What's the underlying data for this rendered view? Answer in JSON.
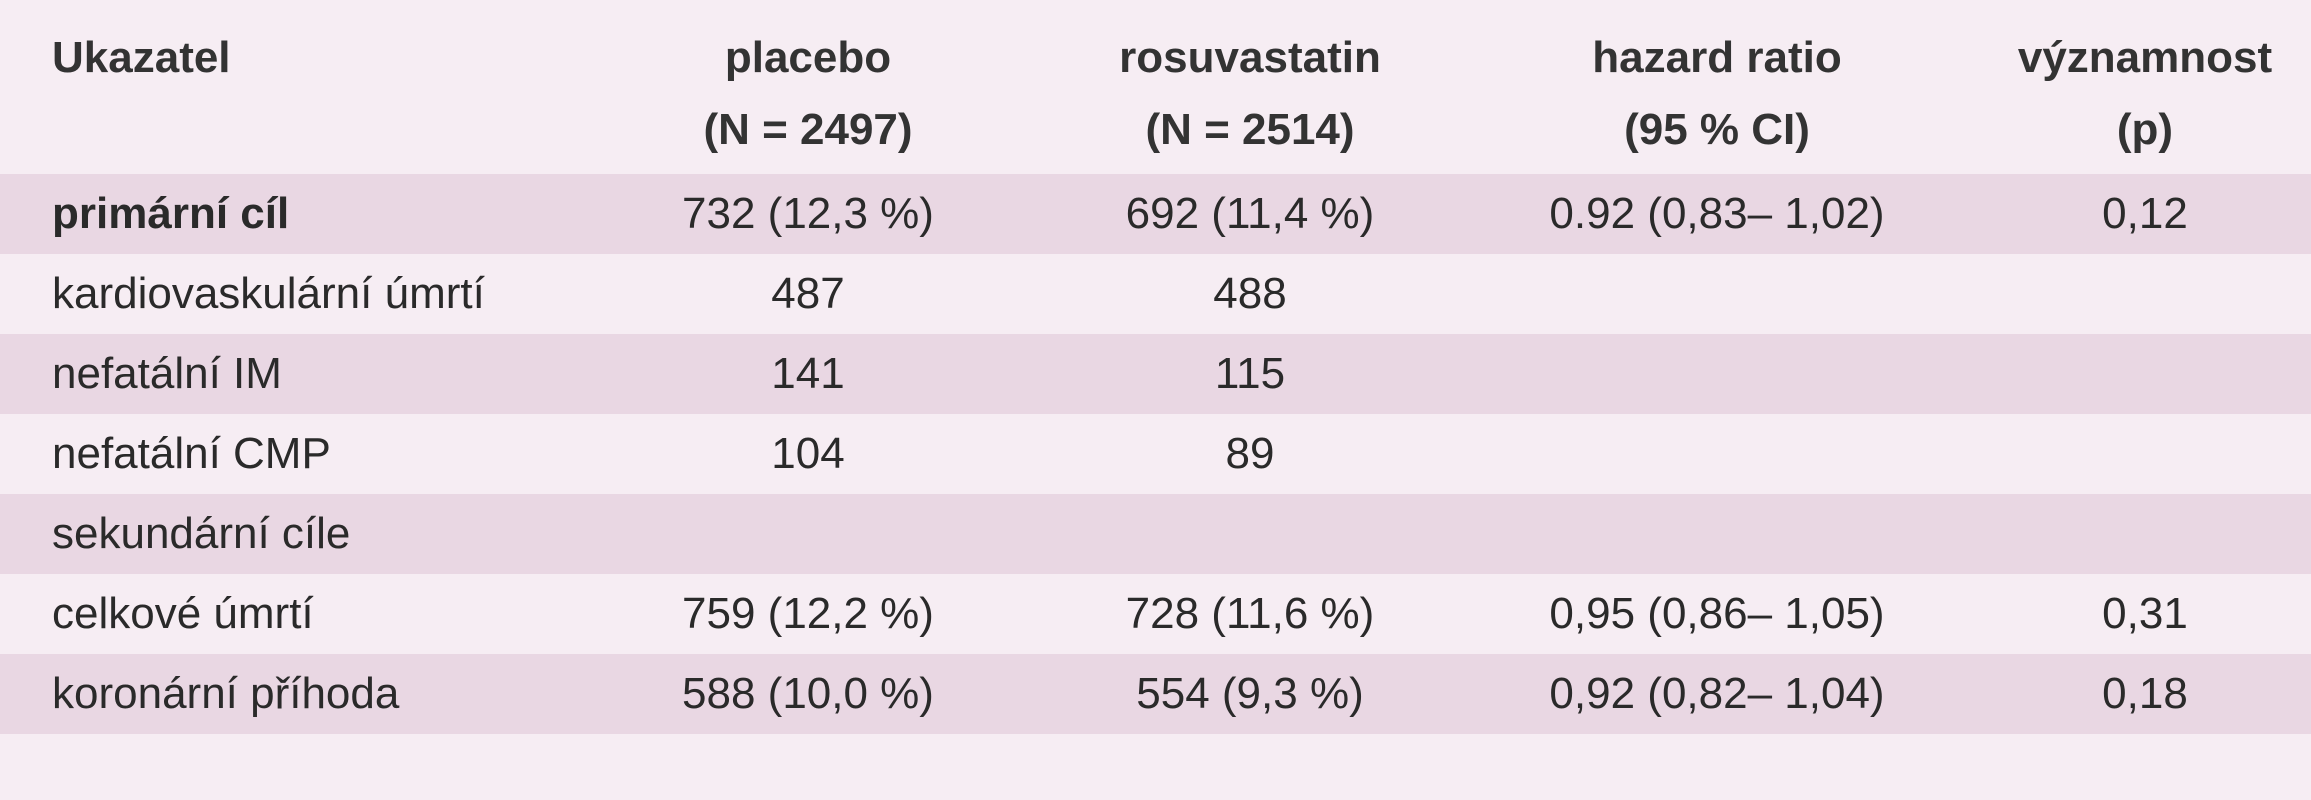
{
  "table": {
    "header": [
      [
        "Ukazatel"
      ],
      [
        "placebo",
        "(N = 2497)"
      ],
      [
        "rosuvastatin",
        "(N = 2514)"
      ],
      [
        "hazard ratio",
        "(95 % CI)"
      ],
      [
        "významnost",
        "(p)"
      ]
    ],
    "rows": [
      [
        "primární cíl",
        "732 (12,3 %)",
        "692 (11,4 %)",
        "0.92 (0,83– 1,02)",
        "0,12"
      ],
      [
        "kardiovaskulární úmrtí",
        "487",
        "488"
      ],
      [
        "nefatální IM",
        "141",
        "115"
      ],
      [
        "nefatální CMP",
        "104",
        "89"
      ],
      [
        "sekundární cíle"
      ],
      [
        "celkové úmrtí",
        "759 (12,2 %)",
        "728 (11,6 %)",
        "0,95 (0,86– 1,05)",
        "0,31"
      ],
      [
        "koronární příhoda",
        "588 (10,0 %)",
        "554 (9,3 %)",
        "0,92 (0,82– 1,04)",
        "0,18"
      ]
    ]
  }
}
